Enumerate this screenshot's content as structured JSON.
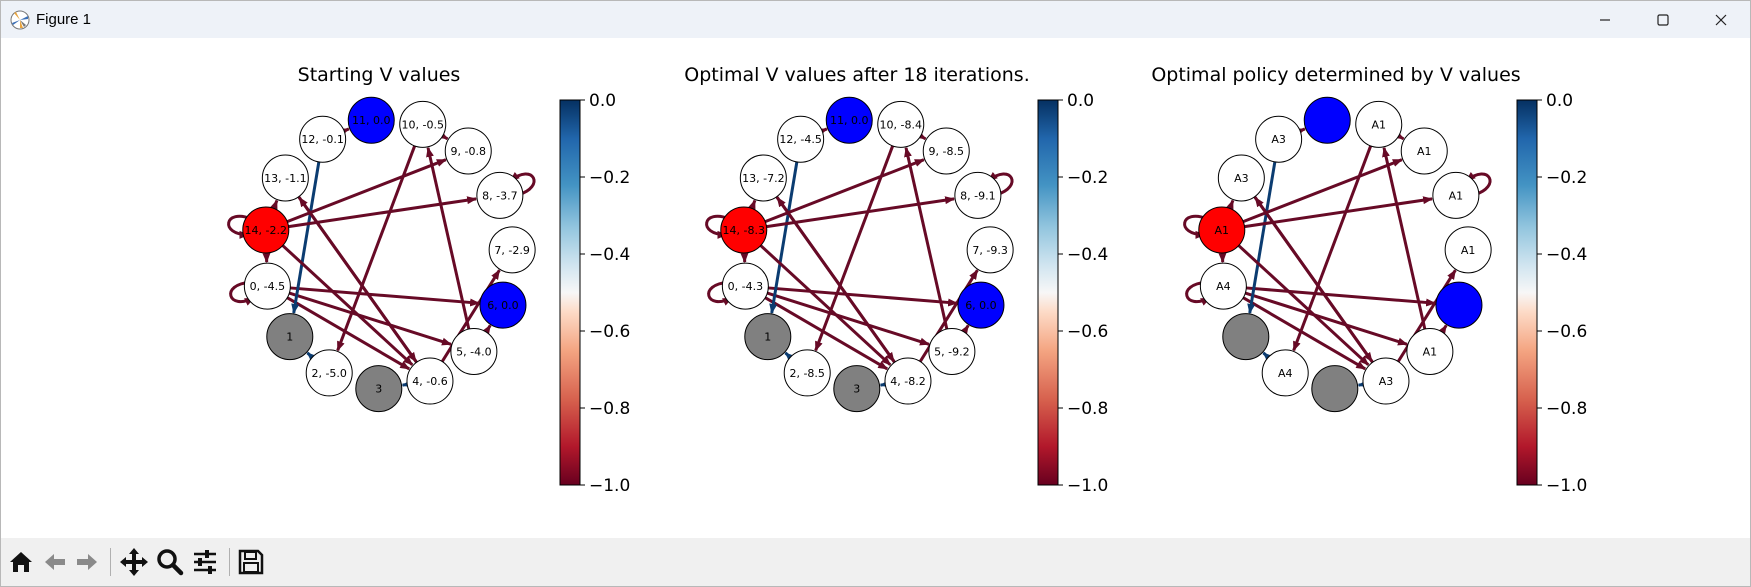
{
  "window": {
    "title": "Figure 1",
    "controls": [
      "minimize",
      "maximize",
      "close"
    ]
  },
  "colors": {
    "edge_positive": "#0b3c71",
    "edge_negative": "#670a26",
    "node_red": "#ff0000",
    "node_blue": "#0000ff",
    "node_gray": "#808080",
    "node_white": "#ffffff",
    "colormap": "RdBu"
  },
  "colorbar": {
    "ticks": [
      "0.0",
      "−0.2",
      "−0.4",
      "−0.6",
      "−0.8",
      "−1.0"
    ],
    "range": [
      -1.0,
      0.0
    ]
  },
  "panels": [
    {
      "title": "Starting V values",
      "labels": [
        "0, -4.5",
        "1",
        "2, -5.0",
        "3",
        "4, -0.6",
        "5, -4.0",
        "6, 0.0",
        "7, -2.9",
        "8, -3.7",
        "9, -0.8",
        "10, -0.5",
        "11, 0.0",
        "12, -0.1",
        "13, -1.1",
        "14, -2.2"
      ]
    },
    {
      "title": "Optimal V values after 18 iterations.",
      "labels": [
        "0, -4.3",
        "1",
        "2, -8.5",
        "3",
        "4, -8.2",
        "5, -9.2",
        "6, 0.0",
        "7, -9.3",
        "8, -9.1",
        "9, -8.5",
        "10, -8.4",
        "11, 0.0",
        "12, -4.5",
        "13, -7.2",
        "14, -8.3"
      ]
    },
    {
      "title": "Optimal policy determined by V values",
      "labels": [
        "A4",
        "",
        "A4",
        "",
        "A3",
        "A1",
        "",
        "A1",
        "A1",
        "A1",
        "A1",
        "",
        "A3",
        "A3",
        "A1"
      ]
    }
  ],
  "graph": {
    "node_types": [
      "white",
      "gray",
      "white",
      "gray",
      "white",
      "white",
      "blue",
      "white",
      "white",
      "white",
      "white",
      "blue",
      "white",
      "white",
      "red"
    ],
    "edges": [
      {
        "from": 0,
        "to": 6,
        "color": "neg"
      },
      {
        "from": 0,
        "to": 5,
        "color": "neg"
      },
      {
        "from": 0,
        "to": 4,
        "color": "neg"
      },
      {
        "from": 0,
        "to": 0,
        "color": "neg"
      },
      {
        "from": 2,
        "to": 1,
        "color": "pos"
      },
      {
        "from": 4,
        "to": 3,
        "color": "pos"
      },
      {
        "from": 4,
        "to": 7,
        "color": "neg"
      },
      {
        "from": 4,
        "to": 13,
        "color": "neg"
      },
      {
        "from": 5,
        "to": 6,
        "color": "neg"
      },
      {
        "from": 5,
        "to": 10,
        "color": "neg"
      },
      {
        "from": 8,
        "to": 8,
        "color": "neg"
      },
      {
        "from": 10,
        "to": 9,
        "color": "neg"
      },
      {
        "from": 10,
        "to": 2,
        "color": "neg"
      },
      {
        "from": 12,
        "to": 11,
        "color": "neg"
      },
      {
        "from": 12,
        "to": 1,
        "color": "pos"
      },
      {
        "from": 13,
        "to": 4,
        "color": "neg"
      },
      {
        "from": 14,
        "to": 13,
        "color": "neg"
      },
      {
        "from": 14,
        "to": 9,
        "color": "neg"
      },
      {
        "from": 14,
        "to": 8,
        "color": "neg"
      },
      {
        "from": 14,
        "to": 4,
        "color": "neg"
      },
      {
        "from": 14,
        "to": 0,
        "color": "neg"
      },
      {
        "from": 14,
        "to": 14,
        "color": "neg"
      }
    ]
  },
  "toolbar": {
    "buttons": [
      "home-icon",
      "back-icon",
      "forward-icon",
      "pan-icon",
      "zoom-icon",
      "configure-icon",
      "save-icon"
    ]
  }
}
